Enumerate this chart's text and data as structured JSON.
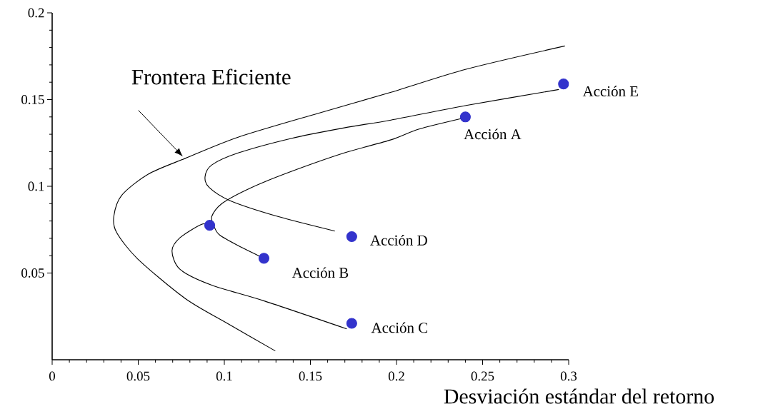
{
  "chart_data": {
    "type": "line",
    "xlabel": "Desviación estándar del retorno",
    "xlim": [
      0,
      0.3
    ],
    "ylim": [
      0,
      0.2
    ],
    "xticks": [
      0,
      0.05,
      0.1,
      0.15,
      0.2,
      0.25,
      0.3
    ],
    "yticks": [
      0.05,
      0.1,
      0.15,
      0.2
    ],
    "grid": false,
    "series": [
      {
        "color": "#000000",
        "marker": "none",
        "x": [
          0.1296,
          0.1019,
          0.0773,
          0.0496,
          0.0374,
          0.0358,
          0.0404,
          0.0558,
          0.0773,
          0.108,
          0.1542,
          0.1968,
          0.2404,
          0.2978
        ],
        "values": [
          0.0051,
          0.0209,
          0.0353,
          0.0582,
          0.0735,
          0.0826,
          0.0948,
          0.107,
          0.1161,
          0.1283,
          0.142,
          0.1542,
          0.1675,
          0.1809
        ]
      },
      {
        "color": "#000000",
        "marker": "none",
        "x": [
          0.1642,
          0.1311,
          0.1034,
          0.0912,
          0.0888,
          0.0927,
          0.108,
          0.1388,
          0.1696,
          0.1968,
          0.2404,
          0.2943
        ],
        "values": [
          0.0742,
          0.0826,
          0.0917,
          0.0993,
          0.1055,
          0.1123,
          0.1192,
          0.1276,
          0.1337,
          0.1382,
          0.1466,
          0.1558
        ]
      },
      {
        "color": "#000000",
        "marker": "none",
        "x": [
          0.1711,
          0.1235,
          0.0927,
          0.0743,
          0.0696,
          0.0743,
          0.0866,
          0.0915
        ],
        "values": [
          0.0178,
          0.0338,
          0.043,
          0.0521,
          0.0628,
          0.0704,
          0.078,
          0.0775
        ]
      },
      {
        "color": "#000000",
        "marker": "none",
        "x": [
          0.1204,
          0.108,
          0.0973,
          0.0942,
          0.0927,
          0.0988,
          0.1158,
          0.1388,
          0.1696,
          0.1968,
          0.2128,
          0.2374
        ],
        "values": [
          0.0597,
          0.0658,
          0.0719,
          0.0765,
          0.0826,
          0.0902,
          0.0993,
          0.1085,
          0.1192,
          0.1268,
          0.1329,
          0.139
        ]
      },
      {
        "type": "scatter",
        "color": "#3333cc",
        "marker": "circle",
        "x": [
          0.0915,
          0.123,
          0.174,
          0.174,
          0.24,
          0.297
        ],
        "values": [
          0.0775,
          0.0585,
          0.021,
          0.071,
          0.14,
          0.159
        ]
      }
    ],
    "annotations": [
      "Frontera Eficiente",
      {
        "text": "Acción A",
        "x": 0.24,
        "y": 0.14
      },
      {
        "text": "Acción E",
        "x": 0.297,
        "y": 0.159
      },
      {
        "text": "Acción D",
        "x": 0.174,
        "y": 0.071
      },
      {
        "text": "Acción B",
        "x": 0.123,
        "y": 0.0585
      },
      {
        "text": "Acción C",
        "x": 0.174,
        "y": 0.021
      }
    ]
  }
}
